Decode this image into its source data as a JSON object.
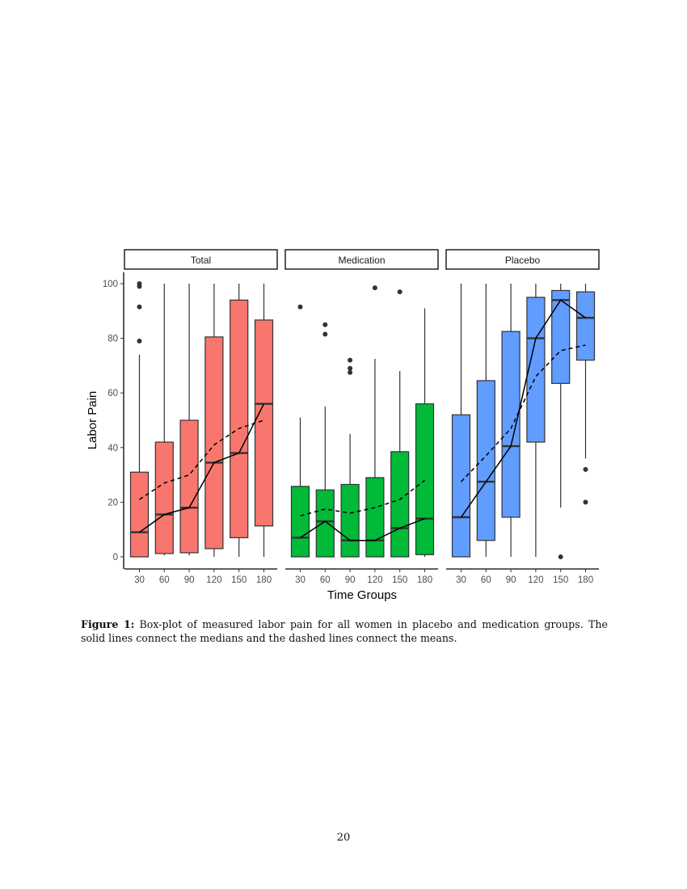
{
  "chart_data": {
    "type": "boxplot",
    "xlabel": "Time Groups",
    "ylabel": "Labor Pain",
    "ylim": [
      0,
      100
    ],
    "yticks": [
      0,
      20,
      40,
      60,
      80,
      100
    ],
    "categories": [
      "30",
      "60",
      "90",
      "120",
      "150",
      "180"
    ],
    "colors": {
      "Total": "#F8766D",
      "Medication": "#00BA38",
      "Placebo": "#619CFF"
    },
    "panels": [
      {
        "name": "Total",
        "boxes": [
          {
            "low": 0,
            "q1": 0,
            "median": 9,
            "q3": 31,
            "high": 74,
            "mean": 21,
            "outliers": [
              79,
              91.5,
              99,
              100
            ]
          },
          {
            "low": 0.5,
            "q1": 1.2,
            "median": 15.5,
            "q3": 42,
            "high": 100,
            "mean": 27,
            "outliers": []
          },
          {
            "low": 0.5,
            "q1": 1.5,
            "median": 18,
            "q3": 50,
            "high": 100,
            "mean": 30,
            "outliers": []
          },
          {
            "low": 0,
            "q1": 3,
            "median": 34.5,
            "q3": 80.5,
            "high": 100,
            "mean": 41,
            "outliers": []
          },
          {
            "low": 0,
            "q1": 7,
            "median": 38,
            "q3": 94,
            "high": 100,
            "mean": 47,
            "outliers": []
          },
          {
            "low": 0,
            "q1": 11.3,
            "median": 56,
            "q3": 86.7,
            "high": 100,
            "mean": 50,
            "outliers": []
          }
        ]
      },
      {
        "name": "Medication",
        "boxes": [
          {
            "low": 0,
            "q1": 0,
            "median": 7,
            "q3": 25.8,
            "high": 51,
            "mean": 15,
            "outliers": [
              91.5
            ]
          },
          {
            "low": 0,
            "q1": 0,
            "median": 13,
            "q3": 24.5,
            "high": 55,
            "mean": 17.5,
            "outliers": [
              81.5,
              85
            ]
          },
          {
            "low": 0,
            "q1": 0,
            "median": 6,
            "q3": 26.5,
            "high": 45,
            "mean": 16,
            "outliers": [
              67.5,
              69,
              72
            ]
          },
          {
            "low": 0,
            "q1": 0,
            "median": 6,
            "q3": 29,
            "high": 72.5,
            "mean": 18,
            "outliers": [
              98.5
            ]
          },
          {
            "low": 0,
            "q1": 0,
            "median": 10.5,
            "q3": 38.5,
            "high": 68,
            "mean": 21,
            "outliers": [
              97
            ]
          },
          {
            "low": 0,
            "q1": 0.8,
            "median": 14,
            "q3": 56,
            "high": 91,
            "mean": 28,
            "outliers": []
          }
        ]
      },
      {
        "name": "Placebo",
        "boxes": [
          {
            "low": 0,
            "q1": 0,
            "median": 14.5,
            "q3": 52,
            "high": 100,
            "mean": 27.5,
            "outliers": []
          },
          {
            "low": 0,
            "q1": 6,
            "median": 27.5,
            "q3": 64.5,
            "high": 100,
            "mean": 37,
            "outliers": []
          },
          {
            "low": 0,
            "q1": 14.5,
            "median": 40.5,
            "q3": 82.5,
            "high": 100,
            "mean": 47,
            "outliers": []
          },
          {
            "low": 0,
            "q1": 42,
            "median": 80,
            "q3": 95,
            "high": 100,
            "mean": 66,
            "outliers": []
          },
          {
            "low": 18,
            "q1": 63.5,
            "median": 94,
            "q3": 97.5,
            "high": 100,
            "mean": 75.5,
            "outliers": [
              0
            ]
          },
          {
            "low": 36,
            "q1": 72,
            "median": 87.5,
            "q3": 97,
            "high": 100,
            "mean": 77.5,
            "outliers": [
              20,
              32
            ]
          }
        ]
      }
    ],
    "annotations": {
      "solid_line": "medians",
      "dashed_line": "means"
    }
  },
  "caption": {
    "label": "Figure 1:",
    "text": "Box-plot of measured labor pain for all women in placebo and medication groups. The solid lines connect the medians and the dashed lines connect the means."
  },
  "page_number": "20"
}
